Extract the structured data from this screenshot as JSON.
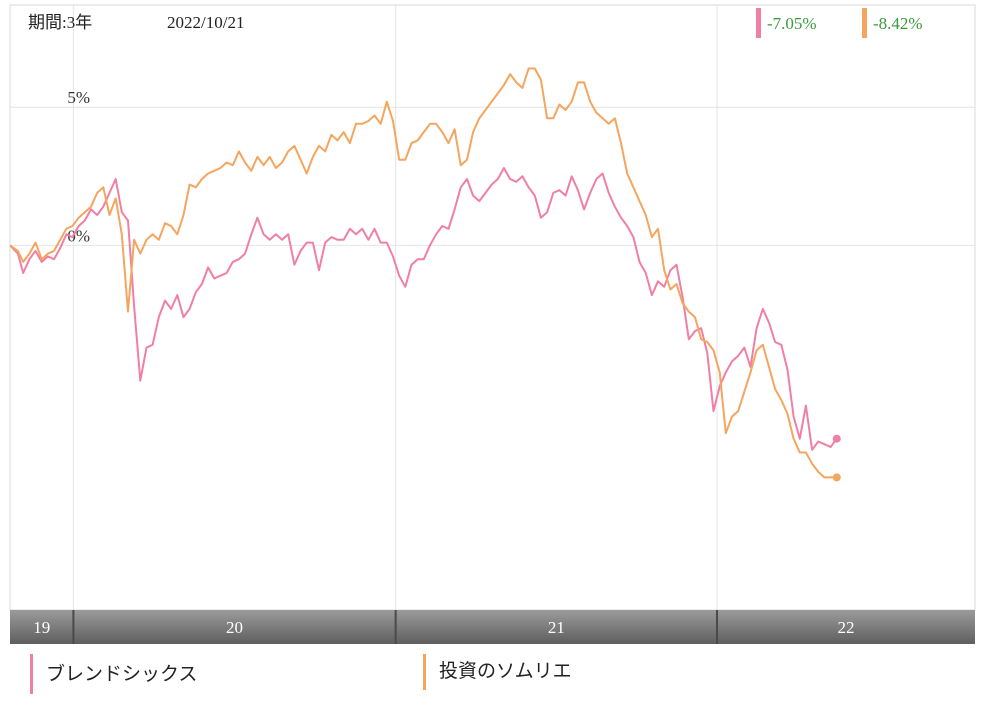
{
  "header": {
    "period_label": "期間:3年",
    "date_label": "2022/10/21"
  },
  "chart_data": {
    "type": "line",
    "y_unit": "%",
    "ylim": [
      -13.2,
      8.7
    ],
    "y_ticks": [
      {
        "value": 5,
        "label": "5%"
      },
      {
        "value": 0,
        "label": "0%"
      }
    ],
    "x_range": [
      "2019-10-21",
      "2022-10-21"
    ],
    "x_periods": [
      {
        "label": "19",
        "start": "2019-10-21",
        "end": "2020-01-01"
      },
      {
        "label": "20",
        "start": "2020-01-01",
        "end": "2021-01-01"
      },
      {
        "label": "21",
        "start": "2021-01-01",
        "end": "2022-01-01"
      },
      {
        "label": "22",
        "start": "2022-01-01",
        "end": "2022-10-21"
      }
    ],
    "grid": true,
    "series": [
      {
        "name": "ブレンドシックス",
        "color": "#f07fa6",
        "final_label": "-7.05%",
        "points": [
          [
            "2019-10-21",
            0.0
          ],
          [
            "2019-10-30",
            -0.3
          ],
          [
            "2019-11-05",
            -1.0
          ],
          [
            "2019-11-12",
            -0.5
          ],
          [
            "2019-11-19",
            -0.2
          ],
          [
            "2019-11-26",
            -0.6
          ],
          [
            "2019-12-03",
            -0.4
          ],
          [
            "2019-12-10",
            -0.5
          ],
          [
            "2019-12-17",
            -0.1
          ],
          [
            "2019-12-24",
            0.4
          ],
          [
            "2019-12-31",
            0.3
          ],
          [
            "2020-01-07",
            0.7
          ],
          [
            "2020-01-14",
            0.9
          ],
          [
            "2020-01-21",
            1.3
          ],
          [
            "2020-01-28",
            1.1
          ],
          [
            "2020-02-04",
            1.4
          ],
          [
            "2020-02-11",
            1.9
          ],
          [
            "2020-02-18",
            2.4
          ],
          [
            "2020-02-25",
            1.2
          ],
          [
            "2020-03-03",
            0.9
          ],
          [
            "2020-03-10",
            -2.2
          ],
          [
            "2020-03-17",
            -4.9
          ],
          [
            "2020-03-24",
            -3.7
          ],
          [
            "2020-03-31",
            -3.6
          ],
          [
            "2020-04-07",
            -2.6
          ],
          [
            "2020-04-14",
            -2.0
          ],
          [
            "2020-04-21",
            -2.3
          ],
          [
            "2020-04-28",
            -1.8
          ],
          [
            "2020-05-05",
            -2.6
          ],
          [
            "2020-05-12",
            -2.3
          ],
          [
            "2020-05-19",
            -1.7
          ],
          [
            "2020-05-26",
            -1.4
          ],
          [
            "2020-06-02",
            -0.8
          ],
          [
            "2020-06-09",
            -1.2
          ],
          [
            "2020-06-16",
            -1.1
          ],
          [
            "2020-06-23",
            -1.0
          ],
          [
            "2020-06-30",
            -0.6
          ],
          [
            "2020-07-07",
            -0.5
          ],
          [
            "2020-07-14",
            -0.3
          ],
          [
            "2020-07-21",
            0.4
          ],
          [
            "2020-07-28",
            1.0
          ],
          [
            "2020-08-04",
            0.4
          ],
          [
            "2020-08-11",
            0.2
          ],
          [
            "2020-08-18",
            0.4
          ],
          [
            "2020-08-25",
            0.2
          ],
          [
            "2020-09-01",
            0.4
          ],
          [
            "2020-09-08",
            -0.7
          ],
          [
            "2020-09-15",
            -0.2
          ],
          [
            "2020-09-22",
            0.1
          ],
          [
            "2020-09-29",
            0.1
          ],
          [
            "2020-10-06",
            -0.9
          ],
          [
            "2020-10-13",
            0.1
          ],
          [
            "2020-10-20",
            0.3
          ],
          [
            "2020-10-27",
            0.2
          ],
          [
            "2020-11-03",
            0.2
          ],
          [
            "2020-11-10",
            0.6
          ],
          [
            "2020-11-17",
            0.4
          ],
          [
            "2020-11-24",
            0.6
          ],
          [
            "2020-12-01",
            0.2
          ],
          [
            "2020-12-08",
            0.6
          ],
          [
            "2020-12-15",
            0.1
          ],
          [
            "2020-12-22",
            0.1
          ],
          [
            "2020-12-29",
            -0.4
          ],
          [
            "2021-01-05",
            -1.1
          ],
          [
            "2021-01-12",
            -1.5
          ],
          [
            "2021-01-19",
            -0.7
          ],
          [
            "2021-01-26",
            -0.5
          ],
          [
            "2021-02-02",
            -0.5
          ],
          [
            "2021-02-09",
            0.0
          ],
          [
            "2021-02-16",
            0.4
          ],
          [
            "2021-02-23",
            0.7
          ],
          [
            "2021-03-02",
            0.6
          ],
          [
            "2021-03-09",
            1.3
          ],
          [
            "2021-03-16",
            2.1
          ],
          [
            "2021-03-23",
            2.4
          ],
          [
            "2021-03-30",
            1.8
          ],
          [
            "2021-04-06",
            1.6
          ],
          [
            "2021-04-13",
            1.9
          ],
          [
            "2021-04-20",
            2.2
          ],
          [
            "2021-04-27",
            2.4
          ],
          [
            "2021-05-04",
            2.8
          ],
          [
            "2021-05-11",
            2.4
          ],
          [
            "2021-05-18",
            2.3
          ],
          [
            "2021-05-25",
            2.5
          ],
          [
            "2021-06-01",
            2.1
          ],
          [
            "2021-06-08",
            1.8
          ],
          [
            "2021-06-15",
            1.0
          ],
          [
            "2021-06-22",
            1.2
          ],
          [
            "2021-06-29",
            1.9
          ],
          [
            "2021-07-06",
            2.0
          ],
          [
            "2021-07-13",
            1.8
          ],
          [
            "2021-07-20",
            2.5
          ],
          [
            "2021-07-27",
            2.0
          ],
          [
            "2021-08-03",
            1.3
          ],
          [
            "2021-08-10",
            1.9
          ],
          [
            "2021-08-17",
            2.4
          ],
          [
            "2021-08-24",
            2.6
          ],
          [
            "2021-08-31",
            1.9
          ],
          [
            "2021-09-07",
            1.4
          ],
          [
            "2021-09-14",
            1.0
          ],
          [
            "2021-09-21",
            0.7
          ],
          [
            "2021-09-28",
            0.3
          ],
          [
            "2021-10-05",
            -0.6
          ],
          [
            "2021-10-12",
            -1.0
          ],
          [
            "2021-10-19",
            -1.8
          ],
          [
            "2021-10-26",
            -1.3
          ],
          [
            "2021-11-02",
            -1.5
          ],
          [
            "2021-11-09",
            -0.9
          ],
          [
            "2021-11-16",
            -0.7
          ],
          [
            "2021-11-23",
            -1.9
          ],
          [
            "2021-11-30",
            -3.4
          ],
          [
            "2021-12-07",
            -3.1
          ],
          [
            "2021-12-14",
            -3.0
          ],
          [
            "2021-12-21",
            -3.9
          ],
          [
            "2021-12-28",
            -6.0
          ],
          [
            "2022-01-04",
            -5.1
          ],
          [
            "2022-01-11",
            -4.6
          ],
          [
            "2022-01-18",
            -4.2
          ],
          [
            "2022-01-25",
            -4.0
          ],
          [
            "2022-02-01",
            -3.7
          ],
          [
            "2022-02-08",
            -4.4
          ],
          [
            "2022-02-15",
            -3.0
          ],
          [
            "2022-02-22",
            -2.3
          ],
          [
            "2022-03-01",
            -2.8
          ],
          [
            "2022-03-08",
            -3.5
          ],
          [
            "2022-03-15",
            -3.6
          ],
          [
            "2022-03-22",
            -4.5
          ],
          [
            "2022-03-29",
            -6.2
          ],
          [
            "2022-04-05",
            -7.0
          ],
          [
            "2022-04-12",
            -5.8
          ],
          [
            "2022-04-19",
            -7.4
          ],
          [
            "2022-04-26",
            -7.1
          ],
          [
            "2022-05-03",
            -7.2
          ],
          [
            "2022-05-10",
            -7.3
          ],
          [
            "2022-05-17",
            -7.0
          ]
        ]
      },
      {
        "name": "投資のソムリエ",
        "color": "#f4a55e",
        "final_label": "-8.42%",
        "points": [
          [
            "2019-10-21",
            0.0
          ],
          [
            "2019-10-30",
            -0.2
          ],
          [
            "2019-11-05",
            -0.6
          ],
          [
            "2019-11-12",
            -0.3
          ],
          [
            "2019-11-19",
            0.1
          ],
          [
            "2019-11-26",
            -0.5
          ],
          [
            "2019-12-03",
            -0.3
          ],
          [
            "2019-12-10",
            -0.2
          ],
          [
            "2019-12-17",
            0.2
          ],
          [
            "2019-12-24",
            0.6
          ],
          [
            "2019-12-31",
            0.7
          ],
          [
            "2020-01-07",
            1.0
          ],
          [
            "2020-01-14",
            1.2
          ],
          [
            "2020-01-21",
            1.4
          ],
          [
            "2020-01-28",
            1.9
          ],
          [
            "2020-02-04",
            2.1
          ],
          [
            "2020-02-11",
            1.1
          ],
          [
            "2020-02-18",
            1.7
          ],
          [
            "2020-02-25",
            0.4
          ],
          [
            "2020-03-03",
            -2.4
          ],
          [
            "2020-03-10",
            0.2
          ],
          [
            "2020-03-17",
            -0.3
          ],
          [
            "2020-03-24",
            0.2
          ],
          [
            "2020-03-31",
            0.4
          ],
          [
            "2020-04-07",
            0.2
          ],
          [
            "2020-04-14",
            0.8
          ],
          [
            "2020-04-21",
            0.7
          ],
          [
            "2020-04-28",
            0.4
          ],
          [
            "2020-05-05",
            1.1
          ],
          [
            "2020-05-12",
            2.2
          ],
          [
            "2020-05-19",
            2.1
          ],
          [
            "2020-05-26",
            2.4
          ],
          [
            "2020-06-02",
            2.6
          ],
          [
            "2020-06-09",
            2.7
          ],
          [
            "2020-06-16",
            2.8
          ],
          [
            "2020-06-23",
            3.0
          ],
          [
            "2020-06-30",
            2.9
          ],
          [
            "2020-07-07",
            3.4
          ],
          [
            "2020-07-14",
            3.0
          ],
          [
            "2020-07-21",
            2.7
          ],
          [
            "2020-07-28",
            3.2
          ],
          [
            "2020-08-04",
            2.9
          ],
          [
            "2020-08-11",
            3.2
          ],
          [
            "2020-08-18",
            2.8
          ],
          [
            "2020-08-25",
            3.0
          ],
          [
            "2020-09-01",
            3.4
          ],
          [
            "2020-09-08",
            3.6
          ],
          [
            "2020-09-15",
            3.1
          ],
          [
            "2020-09-22",
            2.6
          ],
          [
            "2020-09-29",
            3.2
          ],
          [
            "2020-10-06",
            3.6
          ],
          [
            "2020-10-13",
            3.4
          ],
          [
            "2020-10-20",
            4.0
          ],
          [
            "2020-10-27",
            3.8
          ],
          [
            "2020-11-03",
            4.1
          ],
          [
            "2020-11-10",
            3.7
          ],
          [
            "2020-11-17",
            4.4
          ],
          [
            "2020-11-24",
            4.4
          ],
          [
            "2020-12-01",
            4.5
          ],
          [
            "2020-12-08",
            4.7
          ],
          [
            "2020-12-15",
            4.4
          ],
          [
            "2020-12-22",
            5.2
          ],
          [
            "2020-12-29",
            4.5
          ],
          [
            "2021-01-05",
            3.1
          ],
          [
            "2021-01-12",
            3.1
          ],
          [
            "2021-01-19",
            3.7
          ],
          [
            "2021-01-26",
            3.8
          ],
          [
            "2021-02-02",
            4.1
          ],
          [
            "2021-02-09",
            4.4
          ],
          [
            "2021-02-16",
            4.4
          ],
          [
            "2021-02-23",
            4.1
          ],
          [
            "2021-03-02",
            3.7
          ],
          [
            "2021-03-09",
            4.2
          ],
          [
            "2021-03-16",
            2.9
          ],
          [
            "2021-03-23",
            3.1
          ],
          [
            "2021-03-30",
            4.1
          ],
          [
            "2021-04-06",
            4.6
          ],
          [
            "2021-04-13",
            4.9
          ],
          [
            "2021-04-20",
            5.2
          ],
          [
            "2021-04-27",
            5.5
          ],
          [
            "2021-05-04",
            5.8
          ],
          [
            "2021-05-11",
            6.2
          ],
          [
            "2021-05-18",
            5.9
          ],
          [
            "2021-05-25",
            5.7
          ],
          [
            "2021-06-01",
            6.4
          ],
          [
            "2021-06-08",
            6.4
          ],
          [
            "2021-06-15",
            6.0
          ],
          [
            "2021-06-22",
            4.6
          ],
          [
            "2021-06-29",
            4.6
          ],
          [
            "2021-07-06",
            5.1
          ],
          [
            "2021-07-13",
            4.9
          ],
          [
            "2021-07-20",
            5.2
          ],
          [
            "2021-07-27",
            5.9
          ],
          [
            "2021-08-03",
            5.9
          ],
          [
            "2021-08-10",
            5.2
          ],
          [
            "2021-08-17",
            4.8
          ],
          [
            "2021-08-24",
            4.6
          ],
          [
            "2021-08-31",
            4.4
          ],
          [
            "2021-09-07",
            4.6
          ],
          [
            "2021-09-14",
            3.7
          ],
          [
            "2021-09-21",
            2.6
          ],
          [
            "2021-09-28",
            2.1
          ],
          [
            "2021-10-05",
            1.6
          ],
          [
            "2021-10-12",
            1.1
          ],
          [
            "2021-10-19",
            0.3
          ],
          [
            "2021-10-26",
            0.6
          ],
          [
            "2021-11-02",
            -0.9
          ],
          [
            "2021-11-09",
            -1.6
          ],
          [
            "2021-11-16",
            -1.4
          ],
          [
            "2021-11-23",
            -2.1
          ],
          [
            "2021-11-30",
            -2.4
          ],
          [
            "2021-12-07",
            -2.6
          ],
          [
            "2021-12-14",
            -3.4
          ],
          [
            "2021-12-21",
            -3.5
          ],
          [
            "2021-12-28",
            -3.8
          ],
          [
            "2022-01-04",
            -4.6
          ],
          [
            "2022-01-11",
            -6.8
          ],
          [
            "2022-01-18",
            -6.2
          ],
          [
            "2022-01-25",
            -6.0
          ],
          [
            "2022-02-01",
            -5.3
          ],
          [
            "2022-02-08",
            -4.6
          ],
          [
            "2022-02-15",
            -3.8
          ],
          [
            "2022-02-22",
            -3.6
          ],
          [
            "2022-03-01",
            -4.4
          ],
          [
            "2022-03-08",
            -5.2
          ],
          [
            "2022-03-15",
            -5.6
          ],
          [
            "2022-03-22",
            -6.1
          ],
          [
            "2022-03-29",
            -7.0
          ],
          [
            "2022-04-05",
            -7.5
          ],
          [
            "2022-04-12",
            -7.5
          ],
          [
            "2022-04-19",
            -7.9
          ],
          [
            "2022-04-26",
            -8.2
          ],
          [
            "2022-05-03",
            -8.4
          ],
          [
            "2022-05-10",
            -8.4
          ],
          [
            "2022-05-17",
            -8.4
          ]
        ]
      }
    ]
  }
}
